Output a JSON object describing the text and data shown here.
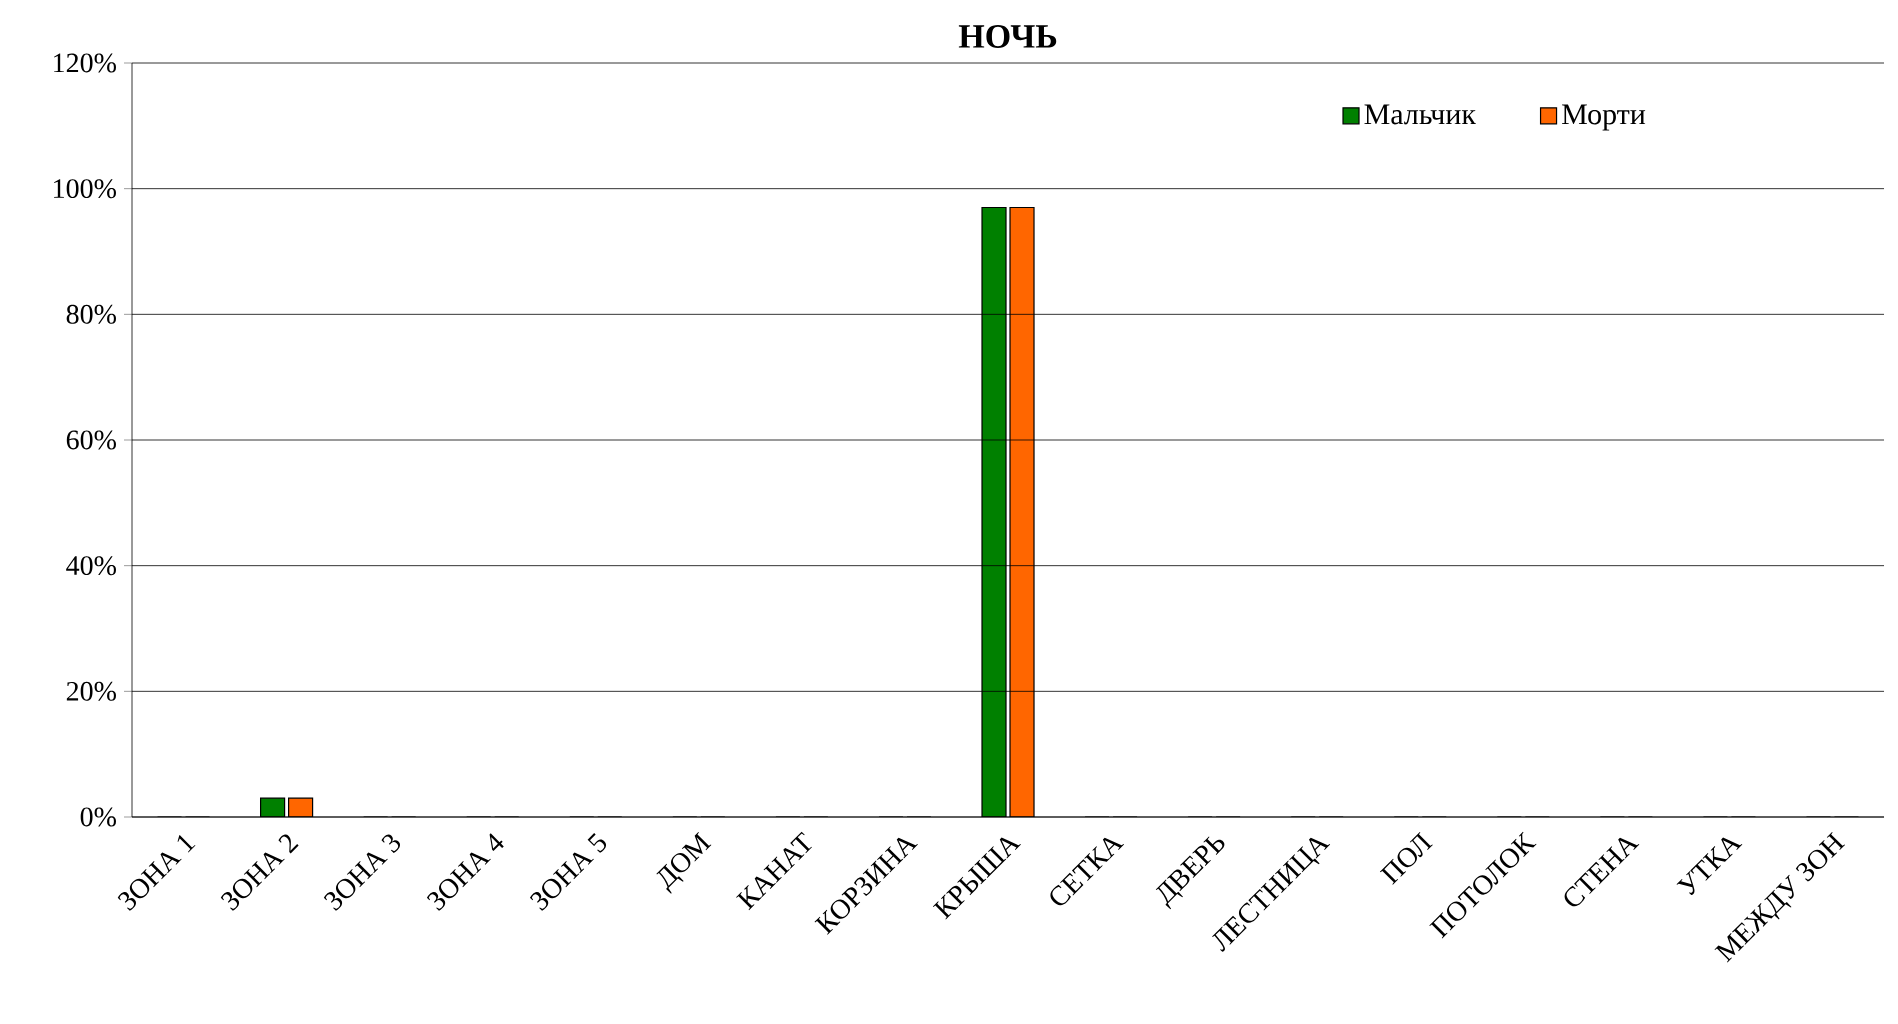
{
  "chart_data": {
    "type": "bar",
    "title": "НОЧЬ",
    "categories": [
      "ЗОНА 1",
      "ЗОНА 2",
      "ЗОНА 3",
      "ЗОНА 4",
      "ЗОНА 5",
      "ДОМ",
      "КАНАТ",
      "КОРЗИНА",
      "КРЫША",
      "СЕТКА",
      "ДВЕРЬ",
      "ЛЕСТНИЦА",
      "ПОЛ",
      "ПОТОЛОК",
      "СТЕНА",
      "УТКА",
      "МЕЖДУ ЗОН"
    ],
    "series": [
      {
        "name": "Мальчик",
        "color": "#008000",
        "values": [
          0,
          3,
          0,
          0,
          0,
          0,
          0,
          0,
          97,
          0,
          0,
          0,
          0,
          0,
          0,
          0,
          0
        ]
      },
      {
        "name": "Морти",
        "color": "#ff6600",
        "values": [
          0,
          3,
          0,
          0,
          0,
          0,
          0,
          0,
          97,
          0,
          0,
          0,
          0,
          0,
          0,
          0,
          0
        ]
      }
    ],
    "ylim": [
      0,
      120
    ],
    "yticks": [
      {
        "value": 0,
        "label": "0%"
      },
      {
        "value": 20,
        "label": "20%"
      },
      {
        "value": 40,
        "label": "40%"
      },
      {
        "value": 60,
        "label": "60%"
      },
      {
        "value": 80,
        "label": "80%"
      },
      {
        "value": 100,
        "label": "100%"
      },
      {
        "value": 120,
        "label": "120%"
      }
    ],
    "grid": "y",
    "legend": "top right"
  }
}
